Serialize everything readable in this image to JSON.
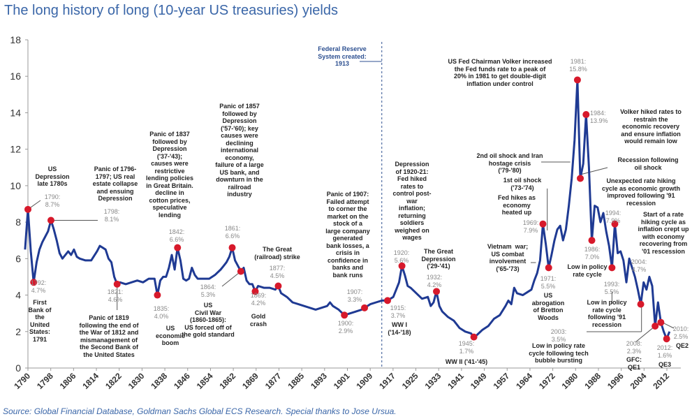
{
  "chart_data": {
    "type": "line",
    "title": "The long history of long (10-year US treasuries) yields",
    "source": "Source: Global Financial Database, Goldman Sachs Global ECS Research. Special thanks to Jose Ursua.",
    "xlabel": "",
    "ylabel": "",
    "xlim": [
      1790,
      2017
    ],
    "ylim": [
      0,
      18
    ],
    "y_ticks": [
      "0",
      "2",
      "4",
      "6",
      "8",
      "10",
      "12",
      "14",
      "16",
      "18"
    ],
    "x_ticks": [
      "1790",
      "1798",
      "1806",
      "1814",
      "1822",
      "1830",
      "1838",
      "1846",
      "1854",
      "1862",
      "1869",
      "1877",
      "1885",
      "1893",
      "1901",
      "1909",
      "1917",
      "1925",
      "1933",
      "1941",
      "1949",
      "1957",
      "1964",
      "1972",
      "1980",
      "1988",
      "1996",
      "2004",
      "2012"
    ],
    "grid": false,
    "line_color": "#1f3a93",
    "marker_color": "#d7192b",
    "reference_line": {
      "year": 1913,
      "style": "dashed"
    },
    "points": [
      [
        1789,
        6.5
      ],
      [
        1790,
        8.7
      ],
      [
        1791,
        6.4
      ],
      [
        1792,
        4.7
      ],
      [
        1793,
        5.8
      ],
      [
        1794,
        6.5
      ],
      [
        1795,
        6.9
      ],
      [
        1796,
        7.2
      ],
      [
        1797,
        7.5
      ],
      [
        1798,
        8.1
      ],
      [
        1799,
        7.6
      ],
      [
        1800,
        7.0
      ],
      [
        1801,
        6.3
      ],
      [
        1802,
        6.0
      ],
      [
        1803,
        6.2
      ],
      [
        1804,
        6.4
      ],
      [
        1805,
        6.2
      ],
      [
        1806,
        6.5
      ],
      [
        1807,
        6.1
      ],
      [
        1808,
        6.0
      ],
      [
        1810,
        5.9
      ],
      [
        1812,
        5.9
      ],
      [
        1814,
        6.4
      ],
      [
        1815,
        6.7
      ],
      [
        1816,
        6.6
      ],
      [
        1817,
        6.5
      ],
      [
        1818,
        6.0
      ],
      [
        1819,
        5.8
      ],
      [
        1820,
        5.0
      ],
      [
        1821,
        4.6
      ],
      [
        1822,
        4.7
      ],
      [
        1824,
        4.6
      ],
      [
        1826,
        4.7
      ],
      [
        1828,
        4.8
      ],
      [
        1830,
        4.7
      ],
      [
        1832,
        4.9
      ],
      [
        1834,
        4.9
      ],
      [
        1835,
        4.0
      ],
      [
        1836,
        4.8
      ],
      [
        1837,
        5.0
      ],
      [
        1838,
        5.0
      ],
      [
        1839,
        5.5
      ],
      [
        1840,
        6.2
      ],
      [
        1841,
        5.4
      ],
      [
        1842,
        6.6
      ],
      [
        1843,
        5.9
      ],
      [
        1844,
        4.9
      ],
      [
        1845,
        4.8
      ],
      [
        1846,
        4.9
      ],
      [
        1847,
        5.5
      ],
      [
        1848,
        5.1
      ],
      [
        1849,
        4.9
      ],
      [
        1851,
        4.9
      ],
      [
        1853,
        4.9
      ],
      [
        1855,
        5.1
      ],
      [
        1857,
        5.4
      ],
      [
        1858,
        5.6
      ],
      [
        1859,
        5.8
      ],
      [
        1860,
        6.1
      ],
      [
        1861,
        6.6
      ],
      [
        1862,
        5.9
      ],
      [
        1863,
        5.6
      ],
      [
        1864,
        5.3
      ],
      [
        1865,
        5.5
      ],
      [
        1866,
        4.8
      ],
      [
        1867,
        4.6
      ],
      [
        1868,
        4.6
      ],
      [
        1869,
        4.2
      ],
      [
        1870,
        4.5
      ],
      [
        1872,
        4.4
      ],
      [
        1874,
        4.4
      ],
      [
        1876,
        4.3
      ],
      [
        1877,
        4.5
      ],
      [
        1878,
        4.1
      ],
      [
        1880,
        3.9
      ],
      [
        1882,
        3.6
      ],
      [
        1884,
        3.5
      ],
      [
        1886,
        3.4
      ],
      [
        1888,
        3.3
      ],
      [
        1890,
        3.2
      ],
      [
        1892,
        3.3
      ],
      [
        1894,
        3.4
      ],
      [
        1895,
        3.6
      ],
      [
        1896,
        3.4
      ],
      [
        1898,
        3.2
      ],
      [
        1900,
        2.9
      ],
      [
        1902,
        3.0
      ],
      [
        1904,
        3.1
      ],
      [
        1906,
        3.2
      ],
      [
        1907,
        3.3
      ],
      [
        1909,
        3.5
      ],
      [
        1911,
        3.6
      ],
      [
        1913,
        3.7
      ],
      [
        1915,
        3.7
      ],
      [
        1917,
        3.9
      ],
      [
        1918,
        4.3
      ],
      [
        1919,
        4.7
      ],
      [
        1920,
        5.6
      ],
      [
        1921,
        5.1
      ],
      [
        1922,
        4.5
      ],
      [
        1923,
        4.4
      ],
      [
        1925,
        4.1
      ],
      [
        1927,
        3.8
      ],
      [
        1929,
        3.9
      ],
      [
        1930,
        3.4
      ],
      [
        1931,
        3.6
      ],
      [
        1932,
        4.2
      ],
      [
        1933,
        3.4
      ],
      [
        1934,
        3.1
      ],
      [
        1936,
        2.8
      ],
      [
        1938,
        2.6
      ],
      [
        1940,
        2.2
      ],
      [
        1942,
        2.0
      ],
      [
        1944,
        1.9
      ],
      [
        1945,
        1.7
      ],
      [
        1946,
        1.8
      ],
      [
        1948,
        2.1
      ],
      [
        1950,
        2.3
      ],
      [
        1952,
        2.7
      ],
      [
        1954,
        2.9
      ],
      [
        1956,
        3.4
      ],
      [
        1957,
        3.7
      ],
      [
        1958,
        3.5
      ],
      [
        1959,
        4.4
      ],
      [
        1960,
        4.1
      ],
      [
        1962,
        4.0
      ],
      [
        1964,
        4.2
      ],
      [
        1965,
        4.3
      ],
      [
        1966,
        4.8
      ],
      [
        1967,
        5.2
      ],
      [
        1968,
        5.9
      ],
      [
        1969,
        7.9
      ],
      [
        1970,
        6.8
      ],
      [
        1971,
        5.5
      ],
      [
        1972,
        6.2
      ],
      [
        1973,
        7.0
      ],
      [
        1974,
        7.6
      ],
      [
        1975,
        7.8
      ],
      [
        1976,
        7.0
      ],
      [
        1977,
        7.6
      ],
      [
        1978,
        8.9
      ],
      [
        1979,
        10.4
      ],
      [
        1980,
        12.5
      ],
      [
        1981,
        15.8
      ],
      [
        1982,
        10.4
      ],
      [
        1983,
        11.2
      ],
      [
        1984,
        13.9
      ],
      [
        1985,
        11.0
      ],
      [
        1986,
        7.0
      ],
      [
        1987,
        8.9
      ],
      [
        1988,
        8.8
      ],
      [
        1989,
        8.0
      ],
      [
        1990,
        8.5
      ],
      [
        1991,
        7.5
      ],
      [
        1992,
        6.7
      ],
      [
        1993,
        5.5
      ],
      [
        1994,
        7.9
      ],
      [
        1995,
        6.3
      ],
      [
        1996,
        6.4
      ],
      [
        1997,
        5.9
      ],
      [
        1998,
        4.7
      ],
      [
        1999,
        6.0
      ],
      [
        2000,
        5.5
      ],
      [
        2001,
        5.0
      ],
      [
        2002,
        4.3
      ],
      [
        2003,
        3.5
      ],
      [
        2004,
        4.7
      ],
      [
        2005,
        4.3
      ],
      [
        2006,
        5.0
      ],
      [
        2007,
        4.5
      ],
      [
        2008,
        2.3
      ],
      [
        2009,
        3.6
      ],
      [
        2010,
        2.5
      ],
      [
        2011,
        2.0
      ],
      [
        2012,
        1.6
      ],
      [
        2013,
        2.0
      ]
    ],
    "markers": [
      [
        1790,
        8.7
      ],
      [
        1792,
        4.7
      ],
      [
        1798,
        8.1
      ],
      [
        1821,
        4.6
      ],
      [
        1835,
        4.0
      ],
      [
        1842,
        6.6
      ],
      [
        1861,
        6.6
      ],
      [
        1864,
        5.3
      ],
      [
        1869,
        4.2
      ],
      [
        1877,
        4.5
      ],
      [
        1900,
        2.9
      ],
      [
        1907,
        3.3
      ],
      [
        1915,
        3.7
      ],
      [
        1920,
        5.6
      ],
      [
        1932,
        4.2
      ],
      [
        1945,
        1.7
      ],
      [
        1969,
        7.9
      ],
      [
        1971,
        5.5
      ],
      [
        1981,
        15.8
      ],
      [
        1982,
        10.4
      ],
      [
        1984,
        13.9
      ],
      [
        1986,
        7.0
      ],
      [
        1993,
        5.5
      ],
      [
        1994,
        7.9
      ],
      [
        2003,
        3.5
      ],
      [
        2008,
        2.3
      ],
      [
        2010,
        2.5
      ],
      [
        2012,
        1.6
      ]
    ],
    "annotations": [
      {
        "kind": "desc",
        "text": "US\nDepression\nlate 1780s"
      },
      {
        "kind": "val",
        "text": "1790:\n8.7%"
      },
      {
        "kind": "desc",
        "text": "Panic of 1796-\n1797; US real\nestate collapse\nand ensuing\nDepression"
      },
      {
        "kind": "val",
        "text": "1798:\n8.1%"
      },
      {
        "kind": "val",
        "text": "1792:\n4.7%"
      },
      {
        "kind": "desc",
        "text": "First\nBank of\nthe\nUnited\nStates:\n1791"
      },
      {
        "kind": "val",
        "text": "1821:\n4.6%"
      },
      {
        "kind": "desc",
        "text": "Panic of 1819\nfollowing the end of\nthe War of 1812 and\nmismanagement of\nthe Second Bank of\nthe United States"
      },
      {
        "kind": "val",
        "text": "1835:\n4.0%"
      },
      {
        "kind": "desc",
        "text": "US\neconomic\nboom"
      },
      {
        "kind": "desc",
        "text": "Panic of 1837\nfollowed by\nDepression\n('37-'43);\ncauses were\nrestrictive\nlending policies\nin Great Britain.\ndecline in\ncotton prices,\nspeculative\nlending"
      },
      {
        "kind": "val",
        "text": "1842:\n6.6%"
      },
      {
        "kind": "desc",
        "text": "Panic of 1857\nfollowed by\nDepression\n('57-'60); key\ncauses were\ndeclining\ninternational\neconomy,\nfailure of a large\nUS bank, and\ndownturn in the\nrailroad\nindustry"
      },
      {
        "kind": "val",
        "text": "1861:\n6.6%"
      },
      {
        "kind": "val",
        "text": "1864:\n5.3%"
      },
      {
        "kind": "desc",
        "text": "US\nCivil War\n(1860-1865):\nUS forced off of\nthe gold standard"
      },
      {
        "kind": "val",
        "text": "1869:\n4.2%"
      },
      {
        "kind": "desc",
        "text": "Gold\ncrash"
      },
      {
        "kind": "desc",
        "text": "The Great\n(railroad) strike"
      },
      {
        "kind": "val",
        "text": "1877:\n4.5%"
      },
      {
        "kind": "fed",
        "text": "Federal Reserve\nSystem created:\n1913"
      },
      {
        "kind": "desc",
        "text": "Panic of 1907:\nFailed attempt\nto corner the\nmarket on the\nstock of a\nlarge company\ngenerated\nbank losses, a\ncrisis in\nconfidence in\nbanks and\nbank runs"
      },
      {
        "kind": "val",
        "text": "1907:\n3.3%"
      },
      {
        "kind": "val",
        "text": "1900:\n2.9%"
      },
      {
        "kind": "val",
        "text": "1915:\n3.7%"
      },
      {
        "kind": "desc",
        "text": "WW I\n('14-'18)"
      },
      {
        "kind": "desc",
        "text": "Depression\nof 1920-21:\nFed hiked\nrates to\ncontrol post-\nwar\ninflation;\nreturning\nsoldiers\nweighed on\nwages"
      },
      {
        "kind": "val",
        "text": "1920:\n5.6%"
      },
      {
        "kind": "desc",
        "text": "The Great\nDepression\n('29-'41)"
      },
      {
        "kind": "val",
        "text": "1932:\n4.2%"
      },
      {
        "kind": "val",
        "text": "1945:\n1.7%"
      },
      {
        "kind": "desc",
        "text": "WW II ('41-'45)"
      },
      {
        "kind": "desc",
        "text": "US Fed Chairman Volker increased\nthe Fed funds rate to a peak of\n20% in 1981 to get double-digit\ninflation under control"
      },
      {
        "kind": "val",
        "text": "1981:\n15.8%"
      },
      {
        "kind": "val",
        "text": "1984:\n13.9%"
      },
      {
        "kind": "desc",
        "text": "Volker hiked rates to\nrestrain the\neconomic recovery\nand ensure inflation\nwould remain low"
      },
      {
        "kind": "desc",
        "text": "2nd oil shock and Iran\nhostage crisis\n('79-'80)"
      },
      {
        "kind": "desc",
        "text": "Recession following\noil shock"
      },
      {
        "kind": "desc",
        "text": "1st oil shock\n('73-'74)"
      },
      {
        "kind": "desc",
        "text": "Fed hikes as\neconomy\nheated up"
      },
      {
        "kind": "val",
        "text": "1969:\n7.9%"
      },
      {
        "kind": "desc",
        "text": "Unexpected rate hiking\ncycle as economic growth\nimproved following '91\nrecession"
      },
      {
        "kind": "val",
        "text": "1994:\n7.9%"
      },
      {
        "kind": "desc",
        "text": "Start of a rate\nhiking cycle as\ninflation crept up\nwith economy\nrecovering from\n'01 rescession"
      },
      {
        "kind": "val",
        "text": "2004:\n4.7%"
      },
      {
        "kind": "desc",
        "text": "Vietnam  war;\nUS combat\ninvolvement\n('65-'73)"
      },
      {
        "kind": "val",
        "text": "1971:\n5.5%"
      },
      {
        "kind": "desc",
        "text": "US\nabrogation\nof Bretton\nWoods"
      },
      {
        "kind": "val",
        "text": "1986:\n7.0%"
      },
      {
        "kind": "desc",
        "text": "Low in policy\nrate cycle"
      },
      {
        "kind": "val",
        "text": "1993:\n5.5%"
      },
      {
        "kind": "desc",
        "text": "Low in policy\nrate cycle\nfollowing '91\nrecession"
      },
      {
        "kind": "val",
        "text": "2003:\n3.5%"
      },
      {
        "kind": "desc",
        "text": "Low in policy rate\ncycle following tech\nbubble bursting"
      },
      {
        "kind": "val",
        "text": "2008:\n2.3%"
      },
      {
        "kind": "desc",
        "text": "GFC:\nQE1"
      },
      {
        "kind": "val",
        "text": "2010:\n2.5%"
      },
      {
        "kind": "desc",
        "text": "QE2"
      },
      {
        "kind": "val",
        "text": "2012:\n1.6%"
      },
      {
        "kind": "desc",
        "text": "QE3"
      }
    ]
  }
}
